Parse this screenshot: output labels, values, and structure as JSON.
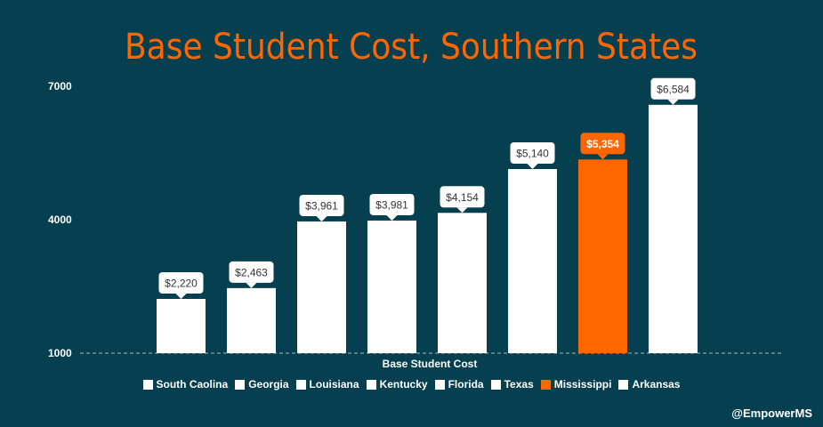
{
  "chart_data": {
    "type": "bar",
    "title": "Base Student Cost, Southern States",
    "xlabel": "Base Student Cost",
    "ylabel": "",
    "categories": [
      "South Caolina",
      "Georgia",
      "Louisiana",
      "Kentucky",
      "Florida",
      "Texas",
      "Mississippi",
      "Arkansas"
    ],
    "values": [
      2220,
      2463,
      3961,
      3981,
      4154,
      5140,
      5354,
      6584
    ],
    "data_labels": [
      "$2,220",
      "$2,463",
      "$3,961",
      "$3,981",
      "$4,154",
      "$5,140",
      "$5,354",
      "$6,584"
    ],
    "y_ticks": [
      "1000",
      "4000",
      "7000"
    ],
    "y_tick_values": [
      1000,
      4000,
      7000
    ],
    "ylim": [
      1000,
      7000
    ],
    "grid": false,
    "legend_position": "bottom",
    "colors": {
      "background": "#063f4f",
      "bar": "#ffffff",
      "highlight": "#ff6600",
      "title": "#ff6600",
      "label_text": "#333333"
    },
    "highlight_category": "Mississippi"
  },
  "credit": "@EmpowerMS"
}
